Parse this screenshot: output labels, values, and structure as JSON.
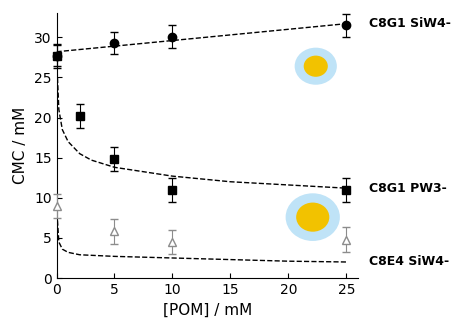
{
  "chart_data": {
    "type": "scatter",
    "x_label": "[POM] / mM",
    "y_label": "CMC / mM",
    "xlim": [
      0,
      26
    ],
    "xticks": [
      0,
      5,
      10,
      15,
      20,
      25
    ],
    "ylim": [
      0,
      33
    ],
    "yticks": [
      0,
      5,
      10,
      15,
      20,
      25,
      30
    ],
    "grid": false,
    "series": [
      {
        "name": "C8G1 SiW4-",
        "color": "#000000",
        "marker": "circle",
        "filled": true,
        "x": [
          0,
          5,
          10,
          25
        ],
        "values": [
          27.7,
          29.3,
          30.1,
          31.5
        ],
        "errors": [
          1.3,
          1.4,
          1.4,
          1.4
        ],
        "fit": {
          "x": [
            0,
            25
          ],
          "values": [
            28.2,
            31.7
          ]
        }
      },
      {
        "name": "C8G1 PW3-",
        "color": "#000000",
        "marker": "square",
        "filled": true,
        "x": [
          0,
          2,
          5,
          10,
          25
        ],
        "values": [
          27.7,
          20.2,
          14.8,
          11.0,
          11.0
        ],
        "errors": [
          1.5,
          1.5,
          1.5,
          1.5,
          1.5
        ],
        "fit": {
          "x": [
            0,
            0.2,
            0.5,
            1,
            2,
            3,
            5,
            10,
            15,
            20,
            25
          ],
          "values": [
            27.7,
            21.0,
            18.5,
            17.0,
            15.5,
            14.7,
            13.8,
            12.7,
            12.0,
            11.6,
            11.2
          ]
        }
      },
      {
        "name": "C8E4 SiW4-",
        "color": "#8c8c8c",
        "marker": "triangle",
        "filled": false,
        "x": [
          0,
          5,
          10,
          25
        ],
        "values": [
          9.0,
          5.8,
          4.5,
          4.8
        ],
        "errors": [
          1.5,
          1.5,
          1.5,
          1.5
        ],
        "fit": {
          "x": [
            0,
            0.2,
            0.5,
            1,
            2,
            5,
            10,
            15,
            20,
            25
          ],
          "values": [
            9.0,
            4.5,
            3.6,
            3.2,
            2.9,
            2.7,
            2.5,
            2.3,
            2.1,
            2.0
          ]
        }
      }
    ]
  }
}
